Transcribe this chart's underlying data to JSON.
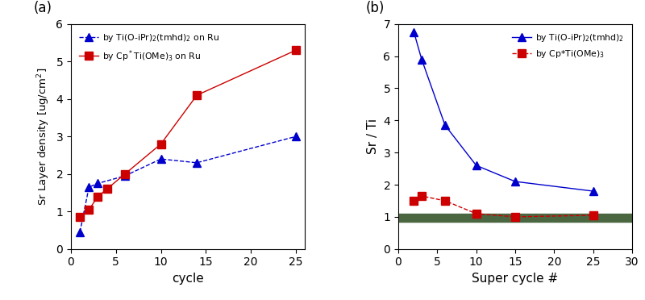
{
  "panel_a": {
    "title": "(a)",
    "xlabel": "cycle",
    "ylabel": "Sr Layer density [ug/cm$^2$]",
    "ylim": [
      0,
      6
    ],
    "xlim": [
      0,
      26
    ],
    "xticks": [
      0,
      5,
      10,
      15,
      20,
      25
    ],
    "yticks": [
      0,
      1,
      2,
      3,
      4,
      5,
      6
    ],
    "series1": {
      "label": "by Ti(O-iPr)$_2$(tmhd)$_2$ on Ru",
      "x": [
        1,
        2,
        3,
        6,
        10,
        14,
        25
      ],
      "y": [
        0.45,
        1.65,
        1.75,
        1.95,
        2.4,
        2.3,
        3.0
      ],
      "color": "#0000cc",
      "marker": "^",
      "linestyle": "--",
      "markersize": 7
    },
    "series2": {
      "label": "by Cp$^*$Ti(OMe)$_3$ on Ru",
      "x": [
        1,
        2,
        3,
        4,
        6,
        10,
        14,
        25
      ],
      "y": [
        0.85,
        1.05,
        1.4,
        1.6,
        2.0,
        2.8,
        4.1,
        5.3
      ],
      "color": "#cc0000",
      "marker": "s",
      "linestyle": "-",
      "markersize": 7
    }
  },
  "panel_b": {
    "title": "(b)",
    "xlabel": "Super cycle #",
    "ylabel": "Sr / Ti",
    "ylim": [
      0,
      7
    ],
    "xlim": [
      0,
      30
    ],
    "xticks": [
      0,
      5,
      10,
      15,
      20,
      25,
      30
    ],
    "yticks": [
      0,
      1,
      2,
      3,
      4,
      5,
      6,
      7
    ],
    "hline_y": 1.0,
    "hband_ymin": 0.85,
    "hband_ymax": 1.1,
    "hline_color": "#4a6741",
    "series1": {
      "label": "by Ti(O-iPr)$_2$(tmhd)$_2$",
      "x": [
        2,
        3,
        6,
        10,
        15,
        25
      ],
      "y": [
        6.75,
        5.9,
        3.85,
        2.6,
        2.1,
        1.8
      ],
      "color": "#0000cc",
      "marker": "^",
      "linestyle": "-",
      "markersize": 7
    },
    "series2": {
      "label": "by Cp*Ti(OMe)$_3$",
      "x": [
        2,
        3,
        6,
        10,
        15,
        25
      ],
      "y": [
        1.5,
        1.65,
        1.5,
        1.1,
        1.0,
        1.05
      ],
      "color": "#cc0000",
      "marker": "s",
      "linestyle": "--",
      "markersize": 7
    }
  },
  "bg_color": "#ffffff"
}
